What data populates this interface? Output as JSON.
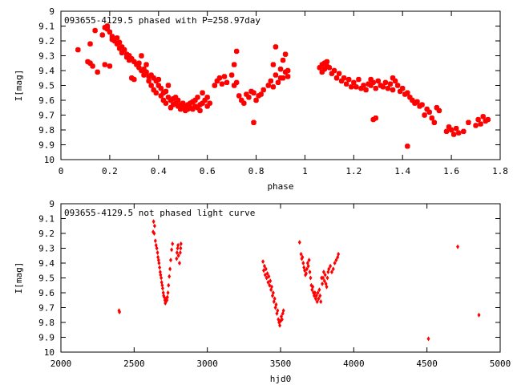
{
  "chart_data": [
    {
      "type": "scatter",
      "title": "093655-4129.5 phased with P=258.97day",
      "xlabel": "phase",
      "ylabel": "I[mag]",
      "xlim": [
        0,
        1.8
      ],
      "ylim": [
        9,
        10
      ],
      "y_inverted": true,
      "grid": false,
      "point_color": "#ff0000",
      "marker": "filled-square-rotated",
      "x_ticks": [
        "0",
        "0.2",
        "0.4",
        "0.6",
        "0.8",
        "1",
        "1.2",
        "1.4",
        "1.6",
        "1.8"
      ],
      "y_ticks": [
        "9",
        "9.1",
        "9.2",
        "9.3",
        "9.4",
        "9.5",
        "9.6",
        "9.7",
        "9.8",
        "9.9",
        "10"
      ],
      "x_tick_values": [
        0,
        0.2,
        0.4,
        0.6,
        0.8,
        1.0,
        1.2,
        1.4,
        1.6,
        1.8
      ],
      "y_tick_values": [
        9,
        9.1,
        9.2,
        9.3,
        9.4,
        9.5,
        9.6,
        9.7,
        9.8,
        9.9,
        10
      ],
      "points": [
        [
          0.07,
          9.26
        ],
        [
          0.11,
          9.34
        ],
        [
          0.12,
          9.22
        ],
        [
          0.12,
          9.35
        ],
        [
          0.13,
          9.37
        ],
        [
          0.14,
          9.13
        ],
        [
          0.15,
          9.41
        ],
        [
          0.17,
          9.16
        ],
        [
          0.18,
          9.11
        ],
        [
          0.18,
          9.36
        ],
        [
          0.19,
          9.1
        ],
        [
          0.19,
          9.12
        ],
        [
          0.2,
          9.14
        ],
        [
          0.2,
          9.37
        ],
        [
          0.21,
          9.17
        ],
        [
          0.21,
          9.19
        ],
        [
          0.22,
          9.2
        ],
        [
          0.23,
          9.18
        ],
        [
          0.23,
          9.22
        ],
        [
          0.24,
          9.21
        ],
        [
          0.24,
          9.25
        ],
        [
          0.25,
          9.24
        ],
        [
          0.25,
          9.28
        ],
        [
          0.26,
          9.26
        ],
        [
          0.27,
          9.29
        ],
        [
          0.27,
          9.31
        ],
        [
          0.28,
          9.3
        ],
        [
          0.28,
          9.33
        ],
        [
          0.29,
          9.32
        ],
        [
          0.29,
          9.45
        ],
        [
          0.3,
          9.34
        ],
        [
          0.3,
          9.46
        ],
        [
          0.31,
          9.36
        ],
        [
          0.32,
          9.35
        ],
        [
          0.32,
          9.38
        ],
        [
          0.33,
          9.4
        ],
        [
          0.33,
          9.3
        ],
        [
          0.34,
          9.39
        ],
        [
          0.34,
          9.43
        ],
        [
          0.35,
          9.41
        ],
        [
          0.35,
          9.36
        ],
        [
          0.36,
          9.44
        ],
        [
          0.36,
          9.47
        ],
        [
          0.37,
          9.43
        ],
        [
          0.37,
          9.5
        ],
        [
          0.38,
          9.45
        ],
        [
          0.38,
          9.53
        ],
        [
          0.39,
          9.47
        ],
        [
          0.39,
          9.55
        ],
        [
          0.4,
          9.46
        ],
        [
          0.4,
          9.5
        ],
        [
          0.41,
          9.52
        ],
        [
          0.41,
          9.57
        ],
        [
          0.42,
          9.55
        ],
        [
          0.42,
          9.6
        ],
        [
          0.43,
          9.54
        ],
        [
          0.43,
          9.62
        ],
        [
          0.44,
          9.58
        ],
        [
          0.44,
          9.5
        ],
        [
          0.45,
          9.6
        ],
        [
          0.45,
          9.65
        ],
        [
          0.46,
          9.59
        ],
        [
          0.46,
          9.63
        ],
        [
          0.47,
          9.62
        ],
        [
          0.47,
          9.58
        ],
        [
          0.48,
          9.64
        ],
        [
          0.48,
          9.6
        ],
        [
          0.49,
          9.63
        ],
        [
          0.49,
          9.66
        ],
        [
          0.5,
          9.65
        ],
        [
          0.5,
          9.62
        ],
        [
          0.51,
          9.64
        ],
        [
          0.51,
          9.67
        ],
        [
          0.52,
          9.66
        ],
        [
          0.52,
          9.63
        ],
        [
          0.53,
          9.65
        ],
        [
          0.53,
          9.62
        ],
        [
          0.54,
          9.66
        ],
        [
          0.54,
          9.61
        ],
        [
          0.55,
          9.64
        ],
        [
          0.55,
          9.6
        ],
        [
          0.56,
          9.65
        ],
        [
          0.56,
          9.58
        ],
        [
          0.57,
          9.63
        ],
        [
          0.57,
          9.67
        ],
        [
          0.58,
          9.62
        ],
        [
          0.58,
          9.55
        ],
        [
          0.59,
          9.6
        ],
        [
          0.6,
          9.64
        ],
        [
          0.6,
          9.58
        ],
        [
          0.61,
          9.62
        ],
        [
          0.63,
          9.5
        ],
        [
          0.64,
          9.47
        ],
        [
          0.65,
          9.45
        ],
        [
          0.66,
          9.49
        ],
        [
          0.67,
          9.44
        ],
        [
          0.68,
          9.48
        ],
        [
          0.7,
          9.43
        ],
        [
          0.71,
          9.5
        ],
        [
          0.71,
          9.36
        ],
        [
          0.72,
          9.27
        ],
        [
          0.72,
          9.48
        ],
        [
          0.73,
          9.57
        ],
        [
          0.74,
          9.6
        ],
        [
          0.75,
          9.62
        ],
        [
          0.76,
          9.56
        ],
        [
          0.77,
          9.58
        ],
        [
          0.78,
          9.54
        ],
        [
          0.79,
          9.55
        ],
        [
          0.79,
          9.75
        ],
        [
          0.8,
          9.6
        ],
        [
          0.81,
          9.57
        ],
        [
          0.82,
          9.56
        ],
        [
          0.83,
          9.53
        ],
        [
          0.85,
          9.5
        ],
        [
          0.86,
          9.47
        ],
        [
          0.87,
          9.51
        ],
        [
          0.87,
          9.36
        ],
        [
          0.88,
          9.24
        ],
        [
          0.88,
          9.43
        ],
        [
          0.89,
          9.48
        ],
        [
          0.9,
          9.45
        ],
        [
          0.9,
          9.39
        ],
        [
          0.91,
          9.33
        ],
        [
          0.91,
          9.45
        ],
        [
          0.92,
          9.29
        ],
        [
          0.92,
          9.41
        ],
        [
          0.93,
          9.44
        ],
        [
          0.93,
          9.4
        ],
        [
          1.06,
          9.38
        ],
        [
          1.07,
          9.36
        ],
        [
          1.07,
          9.41
        ],
        [
          1.08,
          9.35
        ],
        [
          1.08,
          9.39
        ],
        [
          1.09,
          9.37
        ],
        [
          1.09,
          9.34
        ],
        [
          1.1,
          9.38
        ],
        [
          1.11,
          9.42
        ],
        [
          1.12,
          9.4
        ],
        [
          1.13,
          9.45
        ],
        [
          1.14,
          9.42
        ],
        [
          1.15,
          9.47
        ],
        [
          1.16,
          9.45
        ],
        [
          1.17,
          9.49
        ],
        [
          1.18,
          9.46
        ],
        [
          1.19,
          9.51
        ],
        [
          1.2,
          9.48
        ],
        [
          1.21,
          9.51
        ],
        [
          1.22,
          9.46
        ],
        [
          1.23,
          9.52
        ],
        [
          1.24,
          9.5
        ],
        [
          1.25,
          9.53
        ],
        [
          1.26,
          9.49
        ],
        [
          1.27,
          9.46
        ],
        [
          1.27,
          9.5
        ],
        [
          1.28,
          9.48
        ],
        [
          1.28,
          9.73
        ],
        [
          1.29,
          9.52
        ],
        [
          1.29,
          9.72
        ],
        [
          1.3,
          9.47
        ],
        [
          1.31,
          9.5
        ],
        [
          1.32,
          9.51
        ],
        [
          1.33,
          9.48
        ],
        [
          1.34,
          9.52
        ],
        [
          1.35,
          9.49
        ],
        [
          1.36,
          9.45
        ],
        [
          1.36,
          9.53
        ],
        [
          1.37,
          9.47
        ],
        [
          1.38,
          9.5
        ],
        [
          1.39,
          9.54
        ],
        [
          1.4,
          9.52
        ],
        [
          1.41,
          9.56
        ],
        [
          1.42,
          9.55
        ],
        [
          1.42,
          9.91
        ],
        [
          1.43,
          9.58
        ],
        [
          1.44,
          9.6
        ],
        [
          1.45,
          9.62
        ],
        [
          1.46,
          9.61
        ],
        [
          1.47,
          9.64
        ],
        [
          1.48,
          9.63
        ],
        [
          1.49,
          9.7
        ],
        [
          1.5,
          9.66
        ],
        [
          1.51,
          9.68
        ],
        [
          1.52,
          9.72
        ],
        [
          1.53,
          9.75
        ],
        [
          1.54,
          9.65
        ],
        [
          1.55,
          9.67
        ],
        [
          1.58,
          9.81
        ],
        [
          1.59,
          9.78
        ],
        [
          1.6,
          9.8
        ],
        [
          1.61,
          9.83
        ],
        [
          1.62,
          9.79
        ],
        [
          1.63,
          9.82
        ],
        [
          1.65,
          9.81
        ],
        [
          1.67,
          9.75
        ],
        [
          1.7,
          9.77
        ],
        [
          1.71,
          9.73
        ],
        [
          1.72,
          9.76
        ],
        [
          1.73,
          9.71
        ],
        [
          1.74,
          9.74
        ],
        [
          1.75,
          9.73
        ]
      ]
    },
    {
      "type": "scatter",
      "title": "093655-4129.5 not phased light curve",
      "xlabel": "hjd0",
      "ylabel": "I[mag]",
      "xlim": [
        2000,
        5000
      ],
      "ylim": [
        9,
        10
      ],
      "y_inverted": true,
      "grid": false,
      "point_color": "#ff0000",
      "marker": "filled-diamond",
      "x_ticks": [
        "2000",
        "2500",
        "3000",
        "3500",
        "4000",
        "4500",
        "5000"
      ],
      "y_ticks": [
        "9",
        "9.1",
        "9.2",
        "9.3",
        "9.4",
        "9.5",
        "9.6",
        "9.7",
        "9.8",
        "9.9",
        "10"
      ],
      "x_tick_values": [
        2000,
        2500,
        3000,
        3500,
        4000,
        4500,
        5000
      ],
      "y_tick_values": [
        9,
        9.1,
        9.2,
        9.3,
        9.4,
        9.5,
        9.6,
        9.7,
        9.8,
        9.9,
        10
      ],
      "points": [
        [
          2397,
          9.72
        ],
        [
          2400,
          9.73
        ],
        [
          2630,
          9.19
        ],
        [
          2633,
          9.12
        ],
        [
          2637,
          9.2
        ],
        [
          2640,
          9.15
        ],
        [
          2645,
          9.25
        ],
        [
          2650,
          9.28
        ],
        [
          2655,
          9.3
        ],
        [
          2660,
          9.33
        ],
        [
          2663,
          9.36
        ],
        [
          2667,
          9.38
        ],
        [
          2670,
          9.4
        ],
        [
          2674,
          9.43
        ],
        [
          2678,
          9.46
        ],
        [
          2681,
          9.48
        ],
        [
          2685,
          9.5
        ],
        [
          2688,
          9.53
        ],
        [
          2692,
          9.55
        ],
        [
          2695,
          9.57
        ],
        [
          2699,
          9.6
        ],
        [
          2702,
          9.62
        ],
        [
          2706,
          9.63
        ],
        [
          2710,
          9.65
        ],
        [
          2713,
          9.67
        ],
        [
          2717,
          9.66
        ],
        [
          2720,
          9.64
        ],
        [
          2724,
          9.65
        ],
        [
          2727,
          9.63
        ],
        [
          2731,
          9.6
        ],
        [
          2735,
          9.55
        ],
        [
          2740,
          9.49
        ],
        [
          2745,
          9.44
        ],
        [
          2750,
          9.38
        ],
        [
          2756,
          9.31
        ],
        [
          2762,
          9.27
        ],
        [
          2790,
          9.37
        ],
        [
          2793,
          9.33
        ],
        [
          2797,
          9.3
        ],
        [
          2800,
          9.28
        ],
        [
          2803,
          9.35
        ],
        [
          2810,
          9.4
        ],
        [
          2815,
          9.33
        ],
        [
          2818,
          9.3
        ],
        [
          2820,
          9.27
        ],
        [
          3380,
          9.39
        ],
        [
          3385,
          9.45
        ],
        [
          3390,
          9.42
        ],
        [
          3395,
          9.48
        ],
        [
          3400,
          9.44
        ],
        [
          3405,
          9.5
        ],
        [
          3410,
          9.47
        ],
        [
          3415,
          9.53
        ],
        [
          3420,
          9.49
        ],
        [
          3425,
          9.55
        ],
        [
          3430,
          9.52
        ],
        [
          3435,
          9.58
        ],
        [
          3440,
          9.56
        ],
        [
          3445,
          9.62
        ],
        [
          3450,
          9.6
        ],
        [
          3455,
          9.66
        ],
        [
          3460,
          9.64
        ],
        [
          3465,
          9.7
        ],
        [
          3470,
          9.68
        ],
        [
          3475,
          9.74
        ],
        [
          3480,
          9.72
        ],
        [
          3485,
          9.78
        ],
        [
          3490,
          9.8
        ],
        [
          3495,
          9.82
        ],
        [
          3500,
          9.79
        ],
        [
          3505,
          9.76
        ],
        [
          3510,
          9.78
        ],
        [
          3515,
          9.74
        ],
        [
          3520,
          9.72
        ],
        [
          3630,
          9.26
        ],
        [
          3640,
          9.34
        ],
        [
          3645,
          9.37
        ],
        [
          3650,
          9.36
        ],
        [
          3655,
          9.4
        ],
        [
          3660,
          9.43
        ],
        [
          3665,
          9.45
        ],
        [
          3670,
          9.48
        ],
        [
          3675,
          9.47
        ],
        [
          3680,
          9.44
        ],
        [
          3685,
          9.4
        ],
        [
          3690,
          9.42
        ],
        [
          3695,
          9.38
        ],
        [
          3700,
          9.46
        ],
        [
          3705,
          9.5
        ],
        [
          3710,
          9.55
        ],
        [
          3715,
          9.58
        ],
        [
          3720,
          9.56
        ],
        [
          3725,
          9.6
        ],
        [
          3730,
          9.62
        ],
        [
          3735,
          9.6
        ],
        [
          3740,
          9.64
        ],
        [
          3745,
          9.62
        ],
        [
          3750,
          9.66
        ],
        [
          3755,
          9.6
        ],
        [
          3760,
          9.64
        ],
        [
          3765,
          9.58
        ],
        [
          3770,
          9.62
        ],
        [
          3775,
          9.66
        ],
        [
          3780,
          9.5
        ],
        [
          3785,
          9.54
        ],
        [
          3790,
          9.5
        ],
        [
          3795,
          9.46
        ],
        [
          3800,
          9.52
        ],
        [
          3805,
          9.48
        ],
        [
          3810,
          9.54
        ],
        [
          3815,
          9.56
        ],
        [
          3820,
          9.5
        ],
        [
          3825,
          9.46
        ],
        [
          3830,
          9.44
        ],
        [
          3840,
          9.42
        ],
        [
          3850,
          9.46
        ],
        [
          3860,
          9.44
        ],
        [
          3870,
          9.4
        ],
        [
          3880,
          9.38
        ],
        [
          3890,
          9.36
        ],
        [
          3895,
          9.34
        ],
        [
          4510,
          9.91
        ],
        [
          4710,
          9.29
        ],
        [
          4855,
          9.75
        ]
      ]
    }
  ]
}
